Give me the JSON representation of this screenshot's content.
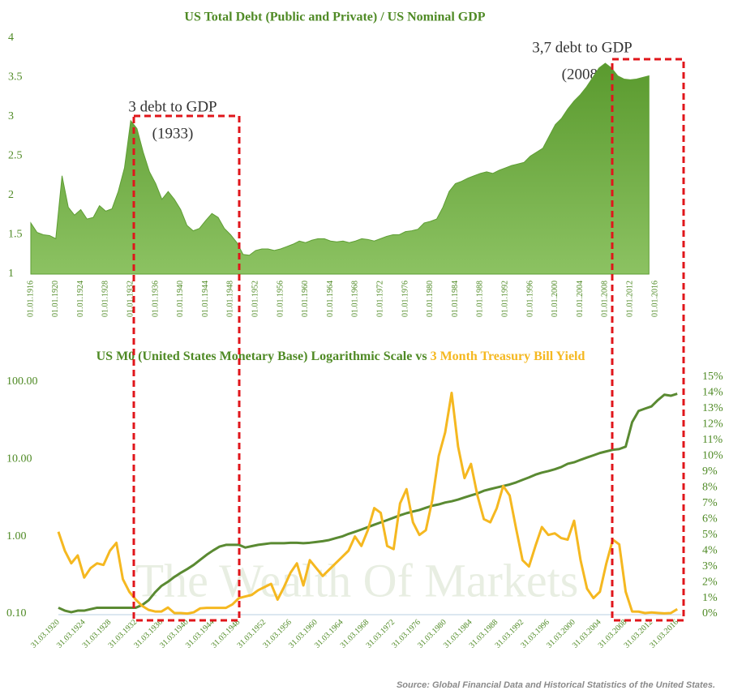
{
  "chart_data": [
    {
      "type": "area",
      "title": "US Total Debt (Public and Private) / US Nominal GDP",
      "color": "#5e9e34",
      "annotations": [
        "3 debt to GDP",
        "(1933)",
        "3,7 debt to GDP",
        "(2008)"
      ],
      "categories": [
        "01.01.1916",
        null,
        null,
        null,
        "01.01.1920",
        null,
        null,
        null,
        "01.01.1924",
        null,
        null,
        null,
        "01.01.1928",
        null,
        null,
        null,
        "01.01.1932",
        null,
        null,
        null,
        "01.01.1936",
        null,
        null,
        null,
        "01.01.1940",
        null,
        null,
        null,
        "01.01.1944",
        null,
        null,
        null,
        "01.01.1948",
        null,
        null,
        null,
        "01.01.1952",
        null,
        null,
        null,
        "01.01.1956",
        null,
        null,
        null,
        "01.01.1960",
        null,
        null,
        null,
        "01.01.1964",
        null,
        null,
        null,
        "01.01.1968",
        null,
        null,
        null,
        "01.01.1972",
        null,
        null,
        null,
        "01.01.1976",
        null,
        null,
        null,
        "01.01.1980",
        null,
        null,
        null,
        "01.01.1984",
        null,
        null,
        null,
        "01.01.1988",
        null,
        null,
        null,
        "01.01.1992",
        null,
        null,
        null,
        "01.01.1996",
        null,
        null,
        null,
        "01.01.2000",
        null,
        null,
        null,
        "01.01.2004",
        null,
        null,
        null,
        "01.01.2008",
        null,
        null,
        null,
        "01.01.2012",
        null,
        null,
        null,
        "01.01.2016"
      ],
      "values": [
        1.65,
        1.53,
        1.5,
        1.49,
        1.45,
        2.25,
        1.85,
        1.75,
        1.82,
        1.7,
        1.72,
        1.87,
        1.8,
        1.83,
        2.05,
        2.35,
        2.95,
        2.85,
        2.55,
        2.3,
        2.15,
        1.95,
        2.05,
        1.95,
        1.82,
        1.62,
        1.55,
        1.58,
        1.68,
        1.77,
        1.72,
        1.58,
        1.5,
        1.4,
        1.25,
        1.24,
        1.3,
        1.32,
        1.32,
        1.3,
        1.32,
        1.35,
        1.38,
        1.42,
        1.4,
        1.43,
        1.45,
        1.45,
        1.42,
        1.41,
        1.42,
        1.4,
        1.42,
        1.45,
        1.44,
        1.42,
        1.45,
        1.48,
        1.5,
        1.5,
        1.54,
        1.55,
        1.57,
        1.65,
        1.67,
        1.7,
        1.85,
        2.05,
        2.15,
        2.18,
        2.22,
        2.25,
        2.28,
        2.3,
        2.28,
        2.32,
        2.35,
        2.38,
        2.4,
        2.42,
        2.5,
        2.55,
        2.6,
        2.75,
        2.9,
        2.98,
        3.1,
        3.2,
        3.28,
        3.38,
        3.5,
        3.62,
        3.68,
        3.62,
        3.52,
        3.48,
        3.47,
        3.48,
        3.5,
        3.52,
        null
      ],
      "ylim": [
        1,
        4
      ],
      "yticks": [
        1,
        1.5,
        2,
        2.5,
        3,
        3.5,
        4
      ],
      "grid": false
    },
    {
      "type": "line",
      "title": "US M0 (United States Monetary Base) Logarithmic Scale  vs",
      "watermark": "The Wealth Of Markets",
      "source": "Source: Global Financial Data and Historical Statistics of the United States.",
      "categories": [
        "31.03.1920",
        null,
        null,
        null,
        "31.03.1924",
        null,
        null,
        null,
        "31.03.1928",
        null,
        null,
        null,
        "31.03.1932",
        null,
        null,
        null,
        "31.03.1936",
        null,
        null,
        null,
        "31.03.1940",
        null,
        null,
        null,
        "31.03.1944",
        null,
        null,
        null,
        "31.03.1948",
        null,
        null,
        null,
        "31.03.1952",
        null,
        null,
        null,
        "31.03.1956",
        null,
        null,
        null,
        "31.03.1960",
        null,
        null,
        null,
        "31.03.1964",
        null,
        null,
        null,
        "31.03.1968",
        null,
        null,
        null,
        "31.03.1972",
        null,
        null,
        null,
        "31.03.1976",
        null,
        null,
        null,
        "31.03.1980",
        null,
        null,
        null,
        "31.03.1984",
        null,
        null,
        null,
        "31.03.1988",
        null,
        null,
        null,
        "31.03.1992",
        null,
        null,
        null,
        "31.03.1996",
        null,
        null,
        null,
        "31.03.2000",
        null,
        null,
        null,
        "31.03.2004",
        null,
        null,
        null,
        "31.03.2008",
        null,
        null,
        null,
        "31.03.2012",
        null,
        null,
        null,
        "31.03.2016"
      ],
      "series": [
        {
          "color": "#5a8a32",
          "values": [
            0.12,
            0.11,
            0.105,
            0.11,
            0.11,
            0.115,
            0.12,
            0.12,
            0.12,
            0.12,
            0.12,
            0.12,
            0.12,
            0.13,
            0.15,
            0.19,
            0.23,
            0.26,
            0.3,
            0.34,
            0.38,
            0.43,
            0.5,
            0.58,
            0.66,
            0.74,
            0.78,
            0.78,
            0.78,
            0.72,
            0.75,
            0.78,
            0.8,
            0.82,
            0.82,
            0.82,
            0.83,
            0.83,
            0.82,
            0.83,
            0.85,
            0.87,
            0.9,
            0.95,
            1.0,
            1.08,
            1.15,
            1.23,
            1.32,
            1.42,
            1.52,
            1.63,
            1.75,
            1.88,
            2.0,
            2.1,
            2.2,
            2.35,
            2.5,
            2.6,
            2.75,
            2.85,
            3.0,
            3.2,
            3.4,
            3.6,
            3.9,
            4.1,
            4.3,
            4.5,
            4.7,
            5.0,
            5.4,
            5.8,
            6.3,
            6.7,
            7.0,
            7.4,
            7.9,
            8.7,
            9.1,
            9.8,
            10.5,
            11.2,
            12.0,
            12.6,
            13.2,
            13.5,
            14.5,
            30,
            42,
            45,
            48,
            58,
            68,
            66,
            70
          ]
        },
        {
          "name": "3 Month Treasury Bill Yield",
          "color": "#f5b820",
          "axis": "y2",
          "values": [
            5.2,
            4.0,
            3.2,
            3.7,
            2.3,
            2.9,
            3.2,
            3.1,
            4.0,
            4.5,
            2.2,
            1.4,
            0.9,
            0.5,
            0.25,
            0.15,
            0.15,
            0.4,
            0.05,
            0.05,
            0.02,
            0.1,
            0.35,
            0.38,
            0.38,
            0.38,
            0.38,
            0.6,
            1.0,
            1.1,
            1.2,
            1.5,
            1.7,
            1.9,
            0.9,
            1.7,
            2.6,
            3.2,
            1.8,
            3.4,
            2.9,
            2.4,
            2.8,
            3.2,
            3.6,
            4.0,
            4.9,
            4.3,
            5.3,
            6.7,
            6.4,
            4.3,
            4.1,
            7.0,
            7.9,
            5.8,
            5.0,
            5.3,
            7.2,
            10.0,
            11.5,
            14.0,
            10.6,
            8.6,
            9.5,
            7.5,
            6.0,
            5.8,
            6.7,
            8.1,
            7.5,
            5.4,
            3.4,
            3.0,
            4.3,
            5.5,
            5.0,
            5.1,
            4.8,
            4.7,
            5.9,
            3.4,
            1.6,
            1.0,
            1.4,
            3.2,
            4.7,
            4.4,
            1.4,
            0.15,
            0.14,
            0.05,
            0.09,
            0.06,
            0.03,
            0.05,
            0.3
          ]
        }
      ],
      "yscale": "log",
      "ylim": [
        0.1,
        115
      ],
      "yticks": [
        {
          "value": 0.1,
          "label": "0.10"
        },
        {
          "value": 1,
          "label": "1.00"
        },
        {
          "value": 10,
          "label": "10.00"
        },
        {
          "value": 100,
          "label": "100.00"
        }
      ],
      "y2lim": [
        0,
        15
      ],
      "y2ticks": [
        {
          "value": 0,
          "label": "0%"
        },
        {
          "value": 1,
          "label": "1%"
        },
        {
          "value": 2,
          "label": "2%"
        },
        {
          "value": 3,
          "label": "3%"
        },
        {
          "value": 4,
          "label": "4%"
        },
        {
          "value": 5,
          "label": "5%"
        },
        {
          "value": 6,
          "label": "6%"
        },
        {
          "value": 7,
          "label": "7%"
        },
        {
          "value": 8,
          "label": "8%"
        },
        {
          "value": 9,
          "label": "9%"
        },
        {
          "value": 10,
          "label": "10%"
        },
        {
          "value": 11,
          "label": "11%"
        },
        {
          "value": 12,
          "label": "12%"
        },
        {
          "value": 13,
          "label": "13%"
        },
        {
          "value": 14,
          "label": "14%"
        },
        {
          "value": 15,
          "label": "15%"
        }
      ],
      "grid": false
    }
  ]
}
